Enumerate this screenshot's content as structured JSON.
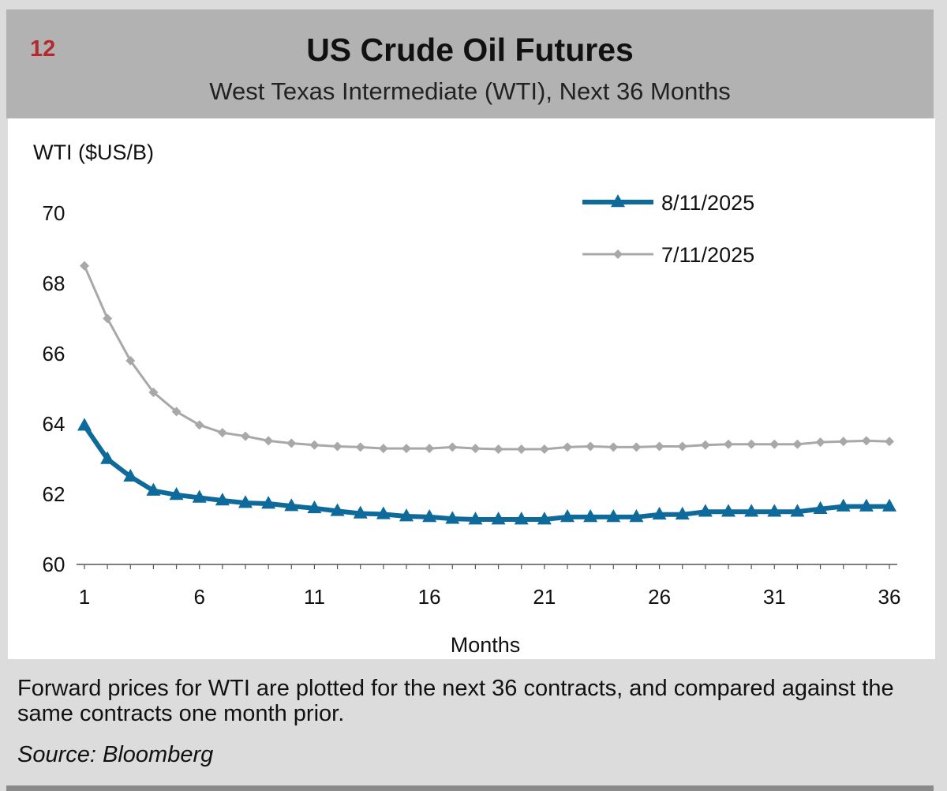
{
  "header": {
    "figure_number": "12",
    "title": "US Crude Oil Futures",
    "subtitle": "West Texas Intermediate (WTI), Next 36 Months"
  },
  "caption": "Forward prices for WTI are plotted for the next 36 contracts, and compared against the same contracts one month prior.",
  "source": "Source: Bloomberg",
  "colors": {
    "series_current": "#0d6a9b",
    "series_prior": "#a8a8a8",
    "figure_number": "#b5282e"
  },
  "chart_data": {
    "type": "line",
    "title": "US Crude Oil Futures",
    "xlabel": "Months",
    "ylabel": "WTI ($US/B)",
    "ylim": [
      60,
      70
    ],
    "yticks": [
      60,
      62,
      64,
      66,
      68,
      70
    ],
    "xticks": [
      1,
      6,
      11,
      16,
      21,
      26,
      31,
      36
    ],
    "x": [
      1,
      2,
      3,
      4,
      5,
      6,
      7,
      8,
      9,
      10,
      11,
      12,
      13,
      14,
      15,
      16,
      17,
      18,
      19,
      20,
      21,
      22,
      23,
      24,
      25,
      26,
      27,
      28,
      29,
      30,
      31,
      32,
      33,
      34,
      35,
      36
    ],
    "legend_position": "top-right",
    "series": [
      {
        "name": "8/11/2025",
        "marker": "triangle",
        "values": [
          63.95,
          63.0,
          62.5,
          62.1,
          61.98,
          61.9,
          61.82,
          61.75,
          61.73,
          61.66,
          61.6,
          61.52,
          61.45,
          61.43,
          61.37,
          61.35,
          61.3,
          61.28,
          61.28,
          61.28,
          61.28,
          61.35,
          61.35,
          61.35,
          61.35,
          61.42,
          61.42,
          61.5,
          61.5,
          61.5,
          61.5,
          61.5,
          61.58,
          61.65,
          61.65,
          61.65
        ]
      },
      {
        "name": "7/11/2025",
        "marker": "diamond",
        "values": [
          68.5,
          67.0,
          65.8,
          64.9,
          64.35,
          63.97,
          63.75,
          63.65,
          63.52,
          63.45,
          63.4,
          63.36,
          63.34,
          63.3,
          63.3,
          63.3,
          63.34,
          63.3,
          63.28,
          63.28,
          63.28,
          63.34,
          63.36,
          63.34,
          63.34,
          63.36,
          63.36,
          63.4,
          63.42,
          63.42,
          63.42,
          63.42,
          63.48,
          63.5,
          63.52,
          63.5
        ]
      }
    ]
  }
}
